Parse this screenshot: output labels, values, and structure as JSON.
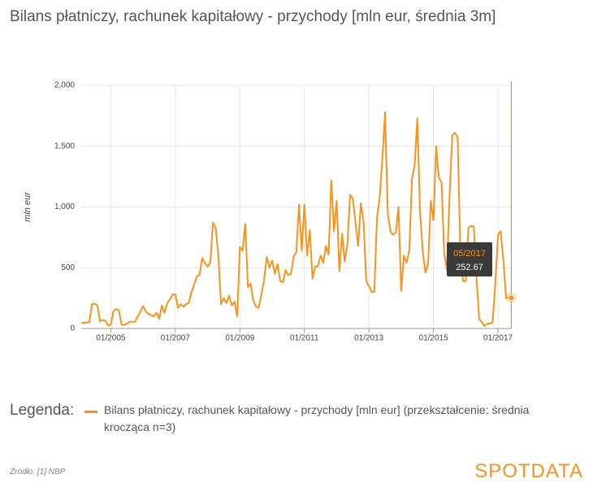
{
  "chart_data": {
    "type": "line",
    "title": "Bilans płatniczy, rachunek kapitałowy - przychody [mln eur, średnia 3m]",
    "y_label": "mln eur",
    "legend_title": "Legenda:",
    "source": "Źródło: [1] NBP",
    "brand": "SPOTDATA",
    "categories": [
      "02/2004",
      "03/2004",
      "04/2004",
      "05/2004",
      "06/2004",
      "07/2004",
      "08/2004",
      "09/2004",
      "10/2004",
      "11/2004",
      "12/2004",
      "01/2005",
      "02/2005",
      "03/2005",
      "04/2005",
      "05/2005",
      "06/2005",
      "07/2005",
      "08/2005",
      "09/2005",
      "10/2005",
      "11/2005",
      "12/2005",
      "01/2006",
      "02/2006",
      "03/2006",
      "04/2006",
      "05/2006",
      "06/2006",
      "07/2006",
      "08/2006",
      "09/2006",
      "10/2006",
      "11/2006",
      "12/2006",
      "01/2007",
      "02/2007",
      "03/2007",
      "04/2007",
      "05/2007",
      "06/2007",
      "07/2007",
      "08/2007",
      "09/2007",
      "10/2007",
      "11/2007",
      "12/2007",
      "01/2008",
      "02/2008",
      "03/2008",
      "04/2008",
      "05/2008",
      "06/2008",
      "07/2008",
      "08/2008",
      "09/2008",
      "10/2008",
      "11/2008",
      "12/2008",
      "01/2009",
      "02/2009",
      "03/2009",
      "04/2009",
      "05/2009",
      "06/2009",
      "07/2009",
      "08/2009",
      "09/2009",
      "10/2009",
      "11/2009",
      "12/2009",
      "01/2010",
      "02/2010",
      "03/2010",
      "04/2010",
      "05/2010",
      "06/2010",
      "07/2010",
      "08/2010",
      "09/2010",
      "10/2010",
      "11/2010",
      "12/2010",
      "01/2011",
      "02/2011",
      "03/2011",
      "04/2011",
      "05/2011",
      "06/2011",
      "07/2011",
      "08/2011",
      "09/2011",
      "10/2011",
      "11/2011",
      "12/2011",
      "01/2012",
      "02/2012",
      "03/2012",
      "04/2012",
      "05/2012",
      "06/2012",
      "07/2012",
      "08/2012",
      "09/2012",
      "10/2012",
      "11/2012",
      "12/2012",
      "01/2013",
      "02/2013",
      "03/2013",
      "04/2013",
      "05/2013",
      "06/2013",
      "07/2013",
      "08/2013",
      "09/2013",
      "10/2013",
      "11/2013",
      "12/2013",
      "01/2014",
      "02/2014",
      "03/2014",
      "04/2014",
      "05/2014",
      "06/2014",
      "07/2014",
      "08/2014",
      "09/2014",
      "10/2014",
      "11/2014",
      "12/2014",
      "01/2015",
      "02/2015",
      "03/2015",
      "04/2015",
      "05/2015",
      "06/2015",
      "07/2015",
      "08/2015",
      "09/2015",
      "10/2015",
      "11/2015",
      "12/2015",
      "01/2016",
      "02/2016",
      "03/2016",
      "04/2016",
      "05/2016",
      "06/2016",
      "07/2016",
      "08/2016",
      "09/2016",
      "10/2016",
      "11/2016",
      "12/2016",
      "01/2017",
      "02/2017",
      "03/2017",
      "04/2017",
      "05/2017"
    ],
    "series": [
      {
        "name": "Bilans płatniczy, rachunek kapitałowy - przychody [mln eur] (przekształcenie: średnia krocząca n=3)",
        "color": "#f7931e",
        "values": [
          45,
          48,
          50,
          50,
          200,
          205,
          190,
          60,
          70,
          65,
          25,
          30,
          145,
          160,
          150,
          30,
          30,
          40,
          55,
          55,
          55,
          100,
          140,
          185,
          140,
          120,
          110,
          100,
          130,
          80,
          190,
          130,
          210,
          240,
          280,
          280,
          170,
          200,
          180,
          200,
          210,
          300,
          360,
          430,
          440,
          580,
          540,
          510,
          540,
          870,
          830,
          600,
          200,
          250,
          210,
          270,
          190,
          220,
          100,
          670,
          640,
          860,
          340,
          370,
          230,
          180,
          170,
          280,
          400,
          590,
          500,
          560,
          450,
          530,
          390,
          380,
          480,
          440,
          450,
          590,
          630,
          1020,
          640,
          1020,
          600,
          810,
          410,
          510,
          510,
          600,
          540,
          680,
          610,
          1220,
          800,
          1050,
          470,
          780,
          550,
          700,
          1100,
          1070,
          870,
          680,
          1030,
          880,
          390,
          350,
          300,
          300,
          910,
          1080,
          1400,
          1780,
          950,
          800,
          770,
          790,
          1000,
          310,
          600,
          540,
          640,
          1230,
          1340,
          1730,
          960,
          640,
          460,
          530,
          1050,
          890,
          1500,
          1240,
          1200,
          620,
          480,
          1100,
          1590,
          1610,
          1570,
          640,
          390,
          390,
          830,
          845,
          840,
          420,
          80,
          50,
          20,
          40,
          40,
          50,
          370,
          770,
          800,
          560,
          250,
          252.67
        ]
      }
    ],
    "tooltip_index": 159,
    "xticks": [
      "01/2005",
      "01/2007",
      "01/2009",
      "01/2011",
      "01/2013",
      "01/2015",
      "01/2017"
    ],
    "ylim": [
      0,
      2000
    ],
    "yticks": [
      0,
      500,
      {
        "value": 1000,
        "label": "1,000"
      },
      {
        "value": 1500,
        "label": "1,500"
      },
      {
        "value": 2000,
        "label": "2,000"
      }
    ],
    "grid": true
  }
}
